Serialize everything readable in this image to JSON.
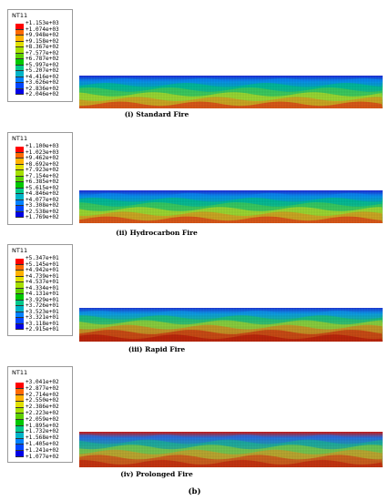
{
  "figure_label": "(b)",
  "legend_colors": [
    "#ff0000",
    "#ff6a00",
    "#ffb200",
    "#e0e000",
    "#a6e000",
    "#5cd000",
    "#00c800",
    "#00c88c",
    "#00b4c8",
    "#0082ff",
    "#0046ff",
    "#0000e6"
  ],
  "panels": [
    {
      "id": "standard",
      "legend_title": "NT11",
      "legend_values": [
        "+1.153e+03",
        "+1.074e+03",
        "+9.948e+02",
        "+9.158e+02",
        "+8.367e+02",
        "+7.577e+02",
        "+6.787e+02",
        "+5.997e+02",
        "+5.207e+02",
        "+4.416e+02",
        "+3.626e+02",
        "+2.836e+02",
        "+2.046e+02"
      ],
      "caption": "(i) Standard Fire",
      "beam_palette": [
        "#1f2ad6",
        "#0a8cf0",
        "#00c87a",
        "#5ad43c",
        "#e0e010",
        "#f08018",
        "#e41a10"
      ]
    },
    {
      "id": "hydrocarbon",
      "legend_title": "NT11",
      "legend_values": [
        "+1.100e+03",
        "+1.023e+03",
        "+9.462e+02",
        "+8.692e+02",
        "+7.923e+02",
        "+7.154e+02",
        "+6.385e+02",
        "+5.615e+02",
        "+4.846e+02",
        "+4.077e+02",
        "+3.308e+02",
        "+2.538e+02",
        "+1.769e+02"
      ],
      "caption": "(ii) Hydrocarbon Fire",
      "beam_palette": [
        "#1f2ad6",
        "#0a8cf0",
        "#00c87a",
        "#5ad43c",
        "#e0e010",
        "#f08018",
        "#e41a10"
      ]
    },
    {
      "id": "rapid",
      "legend_title": "NT11",
      "legend_values": [
        "+5.347e+01",
        "+5.145e+01",
        "+4.942e+01",
        "+4.739e+01",
        "+4.537e+01",
        "+4.334e+01",
        "+4.131e+01",
        "+3.929e+01",
        "+3.726e+01",
        "+3.523e+01",
        "+3.321e+01",
        "+3.118e+01",
        "+2.915e+01"
      ],
      "caption": "(iii) Rapid Fire",
      "beam_palette": [
        "#1e3ad8",
        "#0c9ae8",
        "#22c85a",
        "#c8d816",
        "#f06a14",
        "#cc1208",
        "#b00a04"
      ]
    },
    {
      "id": "prolonged",
      "legend_title": "NT11",
      "legend_values": [
        "+3.041e+02",
        "+2.877e+02",
        "+2.714e+02",
        "+2.550e+02",
        "+2.386e+02",
        "+2.223e+02",
        "+2.059e+02",
        "+1.895e+02",
        "+1.732e+02",
        "+1.568e+02",
        "+1.405e+02",
        "+1.241e+02",
        "+1.077e+02"
      ],
      "caption": "(iv) Prolonged Fire",
      "beam_palette": [
        "#d01a10",
        "#2a70e0",
        "#18c08a",
        "#a0d820",
        "#f09018",
        "#d82a10",
        "#c01008"
      ]
    }
  ]
}
